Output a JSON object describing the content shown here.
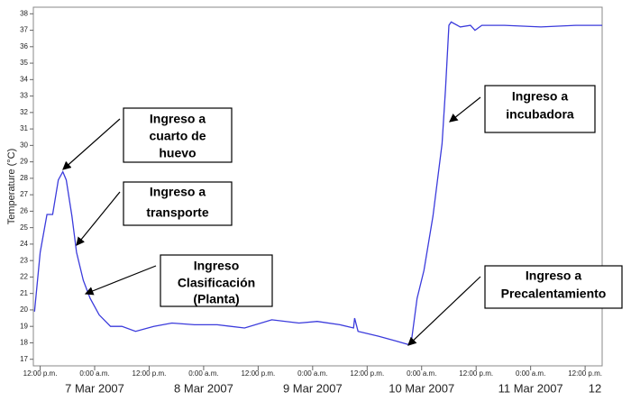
{
  "chart_data": {
    "type": "line",
    "y_label": "Temperature (°C)",
    "x": [
      "2007-03-06T10:45",
      "2007-03-06T12:00",
      "2007-03-06T13:30",
      "2007-03-06T14:45",
      "2007-03-06T16:00",
      "2007-03-06T17:00",
      "2007-03-06T17:45",
      "2007-03-06T19:00",
      "2007-03-06T20:00",
      "2007-03-06T21:30",
      "2007-03-06T23:00",
      "2007-03-07T01:00",
      "2007-03-07T03:30",
      "2007-03-07T06:00",
      "2007-03-07T09:00",
      "2007-03-07T13:00",
      "2007-03-07T17:00",
      "2007-03-07T22:00",
      "2007-03-08T03:00",
      "2007-03-08T09:00",
      "2007-03-08T15:00",
      "2007-03-08T21:00",
      "2007-03-09T01:00",
      "2007-03-09T06:00",
      "2007-03-09T09:00",
      "2007-03-09T09:15",
      "2007-03-09T10:00",
      "2007-03-09T14:30",
      "2007-03-09T18:30",
      "2007-03-09T21:00",
      "2007-03-09T21:45",
      "2007-03-09T23:00",
      "2007-03-10T00:30",
      "2007-03-10T02:30",
      "2007-03-10T04:30",
      "2007-03-10T05:15",
      "2007-03-10T06:00",
      "2007-03-10T06:30",
      "2007-03-10T08:30",
      "2007-03-10T10:45",
      "2007-03-10T11:45",
      "2007-03-10T13:15",
      "2007-03-10T18:15",
      "2007-03-11T02:15",
      "2007-03-11T10:00",
      "2007-03-11T15:45"
    ],
    "series": [
      {
        "name": "Temperature",
        "color": "#3b3bdc",
        "values": [
          19.9,
          23.5,
          25.8,
          25.8,
          27.9,
          28.4,
          27.9,
          25.7,
          23.5,
          21.8,
          20.7,
          19.7,
          19.0,
          19.0,
          18.7,
          19.0,
          19.2,
          19.1,
          19.1,
          18.9,
          19.4,
          19.2,
          19.3,
          19.1,
          18.9,
          19.5,
          18.7,
          18.4,
          18.1,
          17.9,
          18.1,
          20.7,
          22.4,
          25.7,
          30.1,
          33.4,
          37.3,
          37.5,
          37.2,
          37.3,
          37.0,
          37.3,
          37.3,
          37.2,
          37.3,
          37.3
        ]
      }
    ],
    "xlim": [
      "2007-03-06T10:30",
      "2007-03-11T15:45"
    ],
    "xticks": [
      {
        "value": "2007-03-06T12:00",
        "label": "12:00 p.m."
      },
      {
        "value": "2007-03-07T00:00",
        "label": "0:00 a.m."
      },
      {
        "value": "2007-03-07T12:00",
        "label": "12:00 p.m."
      },
      {
        "value": "2007-03-08T00:00",
        "label": "0:00 a.m."
      },
      {
        "value": "2007-03-08T12:00",
        "label": "12:00 p.m."
      },
      {
        "value": "2007-03-09T00:00",
        "label": "0:00 a.m."
      },
      {
        "value": "2007-03-09T12:00",
        "label": "12:00 p.m."
      },
      {
        "value": "2007-03-10T00:00",
        "label": "0:00 a.m."
      },
      {
        "value": "2007-03-10T12:00",
        "label": "12:00 p.m."
      },
      {
        "value": "2007-03-11T00:00",
        "label": "0:00 a.m."
      },
      {
        "value": "2007-03-11T12:00",
        "label": "12:00 p.m."
      }
    ],
    "day_labels": [
      {
        "value": "2007-03-07T00:00",
        "label": "7 Mar 2007"
      },
      {
        "value": "2007-03-08T00:00",
        "label": "8 Mar 2007"
      },
      {
        "value": "2007-03-09T00:00",
        "label": "9 Mar 2007"
      },
      {
        "value": "2007-03-10T00:00",
        "label": "10 Mar 2007"
      },
      {
        "value": "2007-03-11T00:00",
        "label": "11 Mar 2007"
      },
      {
        "value": "2007-03-12T00:00",
        "label": "12"
      }
    ],
    "ylim": [
      16.6,
      38.4
    ],
    "yticks": [
      17,
      18,
      19,
      20,
      21,
      22,
      23,
      24,
      25,
      26,
      27,
      28,
      29,
      30,
      31,
      32,
      33,
      34,
      35,
      36,
      37,
      38
    ],
    "annotations": [
      [
        "Ingreso a",
        "cuarto de",
        "huevo"
      ],
      [
        "Ingreso a",
        "transporte"
      ],
      [
        "Ingreso",
        "Clasificación",
        "(Planta)"
      ],
      [
        "Ingreso a",
        "incubadora"
      ],
      [
        "Ingreso a",
        "Precalentamiento"
      ]
    ]
  }
}
